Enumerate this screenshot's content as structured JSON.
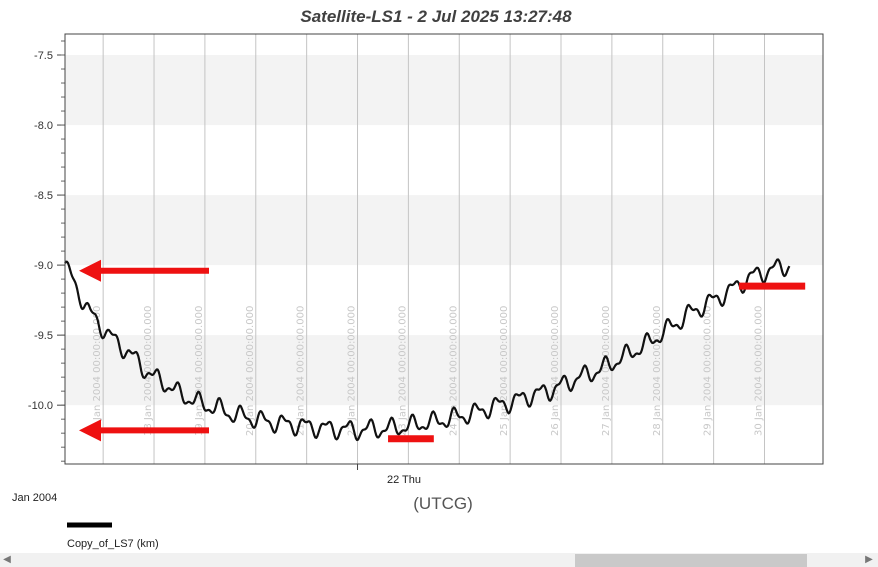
{
  "chart_data": {
    "type": "line",
    "title": "Satellite-LS1 -  2 Jul 2025 13:27:48",
    "xlabel": "(UTCG)",
    "epoch_label": "Jan 2004",
    "center_tick_label": "22 Thu",
    "ylim": [
      -10.42,
      -7.35
    ],
    "y_ticks": [
      -7.5,
      -8.0,
      -8.5,
      -9.0,
      -9.5,
      -10.0
    ],
    "y_tick_labels": [
      "-7.5",
      "-8.0",
      "-8.5",
      "-9.0",
      "-9.5",
      "-10.0"
    ],
    "xlim_days": [
      16.25,
      31.15
    ],
    "vertical_lines": [
      {
        "day": 17,
        "label": "17 Jan 2004 00:00:00.000"
      },
      {
        "day": 18,
        "label": "18 Jan 2004 00:00:00.000"
      },
      {
        "day": 19,
        "label": "19 Jan 2004 00:00:00.000"
      },
      {
        "day": 20,
        "label": "20 Jan 2004 00:00:00.000"
      },
      {
        "day": 21,
        "label": "21 Jan 2004 00:00:00.000"
      },
      {
        "day": 22,
        "label": "22 Jan 2004 00:00:00.000"
      },
      {
        "day": 23,
        "label": "23 Jan 2004 00:00:00.000"
      },
      {
        "day": 24,
        "label": "24 Jan 2004 00:00:00.000"
      },
      {
        "day": 25,
        "label": "25 Jan 2004 00:00:00.000"
      },
      {
        "day": 26,
        "label": "26 Jan 2004 00:00:00.000"
      },
      {
        "day": 27,
        "label": "27 Jan 2004 00:00:00.000"
      },
      {
        "day": 28,
        "label": "28 Jan 2004 00:00:00.000"
      },
      {
        "day": 29,
        "label": "29 Jan 2004 00:00:00.000"
      },
      {
        "day": 30,
        "label": "30 Jan 2004 00:00:00.000"
      }
    ],
    "series": [
      {
        "name": "Copy_of_LS7 (km)",
        "color": "#111111",
        "points": [
          [
            16.25,
            -9.0
          ],
          [
            16.5,
            -9.18
          ],
          [
            16.75,
            -9.35
          ],
          [
            17.0,
            -9.45
          ],
          [
            17.25,
            -9.55
          ],
          [
            17.5,
            -9.62
          ],
          [
            17.75,
            -9.72
          ],
          [
            18.0,
            -9.8
          ],
          [
            18.25,
            -9.85
          ],
          [
            18.5,
            -9.92
          ],
          [
            18.75,
            -9.96
          ],
          [
            19.0,
            -10.0
          ],
          [
            19.25,
            -10.02
          ],
          [
            19.5,
            -10.06
          ],
          [
            19.75,
            -10.08
          ],
          [
            20.0,
            -10.1
          ],
          [
            20.25,
            -10.12
          ],
          [
            20.5,
            -10.13
          ],
          [
            20.75,
            -10.14
          ],
          [
            21.0,
            -10.15
          ],
          [
            21.25,
            -10.16
          ],
          [
            21.5,
            -10.17
          ],
          [
            21.75,
            -10.17
          ],
          [
            22.0,
            -10.18
          ],
          [
            22.25,
            -10.17
          ],
          [
            22.5,
            -10.17
          ],
          [
            22.75,
            -10.16
          ],
          [
            23.0,
            -10.15
          ],
          [
            23.25,
            -10.13
          ],
          [
            23.5,
            -10.12
          ],
          [
            23.75,
            -10.1
          ],
          [
            24.0,
            -10.08
          ],
          [
            24.25,
            -10.06
          ],
          [
            24.5,
            -10.03
          ],
          [
            24.75,
            -10.0
          ],
          [
            25.0,
            -9.98
          ],
          [
            25.25,
            -9.95
          ],
          [
            25.5,
            -9.92
          ],
          [
            25.75,
            -9.9
          ],
          [
            26.0,
            -9.86
          ],
          [
            26.25,
            -9.82
          ],
          [
            26.5,
            -9.78
          ],
          [
            26.75,
            -9.75
          ],
          [
            27.0,
            -9.7
          ],
          [
            27.25,
            -9.65
          ],
          [
            27.5,
            -9.6
          ],
          [
            27.75,
            -9.55
          ],
          [
            28.0,
            -9.48
          ],
          [
            28.25,
            -9.42
          ],
          [
            28.5,
            -9.35
          ],
          [
            28.75,
            -9.3
          ],
          [
            29.0,
            -9.25
          ],
          [
            29.25,
            -9.2
          ],
          [
            29.5,
            -9.14
          ],
          [
            29.75,
            -9.08
          ],
          [
            30.0,
            -9.05
          ],
          [
            30.25,
            -9.02
          ],
          [
            30.5,
            -9.0
          ]
        ]
      }
    ],
    "ripple_amplitude": 0.07,
    "ripple_period_days": 0.42,
    "grid": true,
    "alternating_bands": true,
    "legend": "bottom-left",
    "annotations": [
      {
        "type": "arrow",
        "color": "#ee1111",
        "points_to_day": 16.25,
        "y_value": -9.04
      },
      {
        "type": "arrow",
        "color": "#ee1111",
        "points_to_day": 16.25,
        "y_value": -10.18
      },
      {
        "type": "marker-bar",
        "color": "#ee1111",
        "day_from": 22.6,
        "day_to": 23.5,
        "y_value": -10.24
      },
      {
        "type": "marker-bar",
        "color": "#ee1111",
        "day_from": 29.5,
        "day_to": 30.8,
        "y_value": -9.15
      }
    ]
  },
  "legend": {
    "label": "Copy_of_LS7 (km)"
  }
}
